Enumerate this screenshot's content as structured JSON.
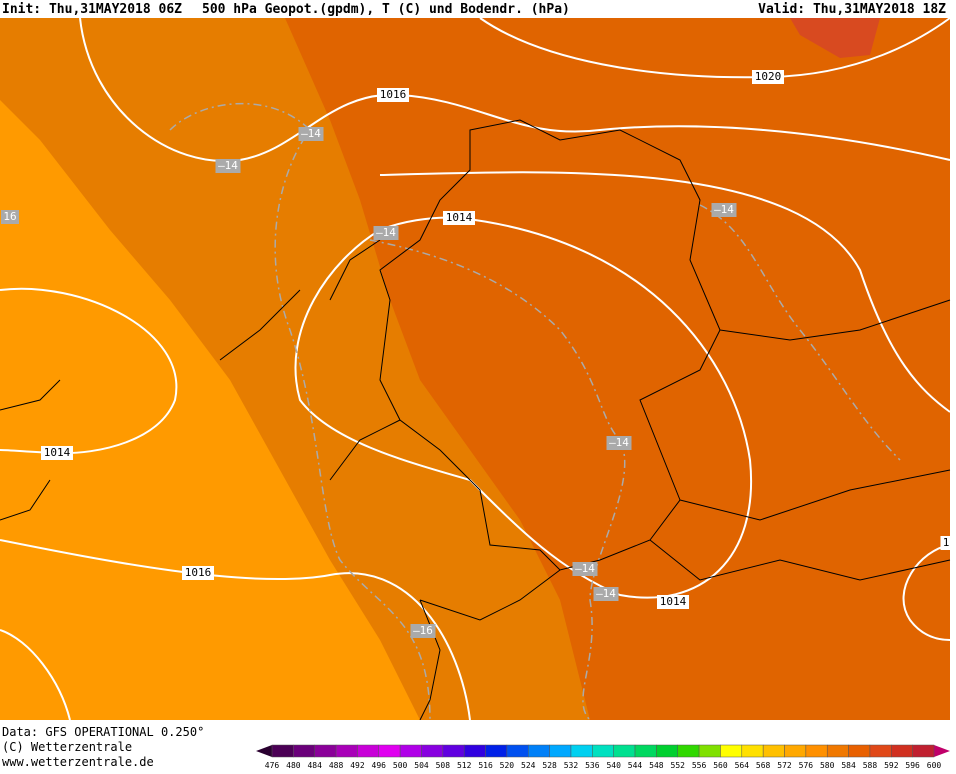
{
  "header": {
    "init": "Init: Thu,31MAY2018 06Z",
    "description": "500 hPa Geopot.(gpdm), T (C) und Bodendr. (hPa)",
    "valid": "Valid: Thu,31MAY2018 18Z"
  },
  "map_labels": [
    "1016",
    "1020",
    "1014",
    "–14",
    "–14",
    "16",
    "–14",
    "–14",
    "1014",
    "–14",
    "1016",
    "–14",
    "–14",
    "1014",
    "–16",
    "1"
  ],
  "footer": [
    "Data: GFS OPERATIONAL 0.250°",
    "(C) Wetterzentrale",
    "www.wetterzentrale.de"
  ],
  "scale": {
    "labels": [
      476,
      480,
      484,
      488,
      492,
      496,
      500,
      504,
      508,
      512,
      516,
      520,
      524,
      528,
      532,
      536,
      540,
      544,
      548,
      552,
      556,
      560,
      564,
      568,
      572,
      576,
      580,
      584,
      588,
      592,
      596,
      600
    ],
    "colors": [
      "#4b0055",
      "#6a007a",
      "#8a0099",
      "#a800b8",
      "#c800d8",
      "#e000f0",
      "#b000e8",
      "#8800e0",
      "#6000e0",
      "#3000e0",
      "#0020e8",
      "#0050f0",
      "#0080f8",
      "#00a8ff",
      "#00d0f0",
      "#00e0c0",
      "#00e090",
      "#00d860",
      "#00d030",
      "#30d800",
      "#80e000",
      "#ffff00",
      "#ffe000",
      "#ffc000",
      "#ffa800",
      "#ff9000",
      "#f07800",
      "#e86000",
      "#e04818",
      "#d03020",
      "#c02030"
    ]
  }
}
